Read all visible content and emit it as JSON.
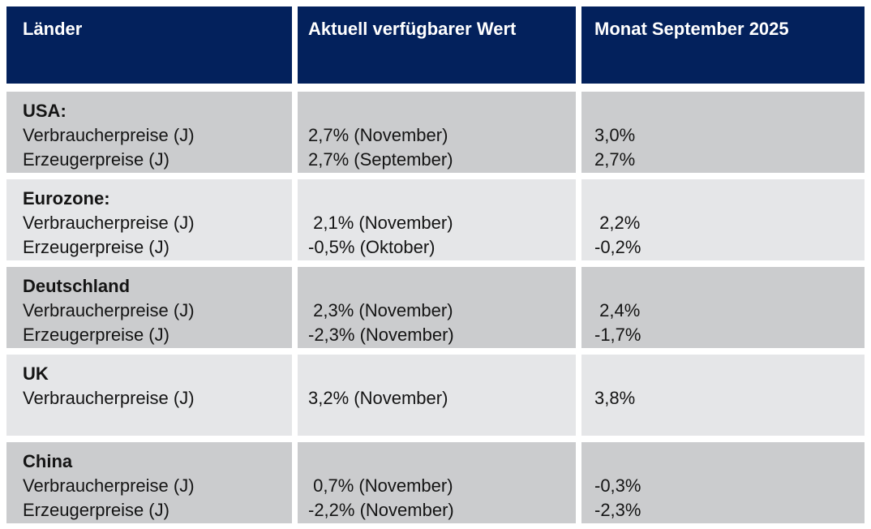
{
  "colors": {
    "header_bg": "#03215c",
    "header_text": "#ffffff",
    "row_dark": "#cbccce",
    "row_light": "#e5e6e8",
    "body_text": "#141414",
    "page_bg": "#ffffff"
  },
  "table": {
    "headers": [
      "Länder",
      "Aktuell verfügbarer Wert",
      "Monat September 2025"
    ],
    "rows": [
      {
        "country": "USA:",
        "labels": "Verbraucherpreise (J)\nErzeugerpreise (J)",
        "current": "2,7% (November)\n2,7% (September)",
        "september": "3,0%\n2,7%"
      },
      {
        "country": "Eurozone:",
        "labels": "Verbraucherpreise (J)\nErzeugerpreise (J)",
        "current": " 2,1% (November)\n-0,5% (Oktober)",
        "september": " 2,2%\n-0,2%"
      },
      {
        "country": "Deutschland",
        "labels": "Verbraucherpreise (J)\nErzeugerpreise (J)",
        "current": " 2,3% (November)\n-2,3% (November)",
        "september": " 2,4%\n-1,7%"
      },
      {
        "country": "UK",
        "labels": "Verbraucherpreise (J)",
        "current": "3,2% (November)",
        "september": "3,8%"
      },
      {
        "country": "China",
        "labels": "Verbraucherpreise (J)\nErzeugerpreise (J)",
        "current": " 0,7% (November)\n-2,2% (November)",
        "september": "-0,3%\n-2,3%"
      }
    ]
  }
}
